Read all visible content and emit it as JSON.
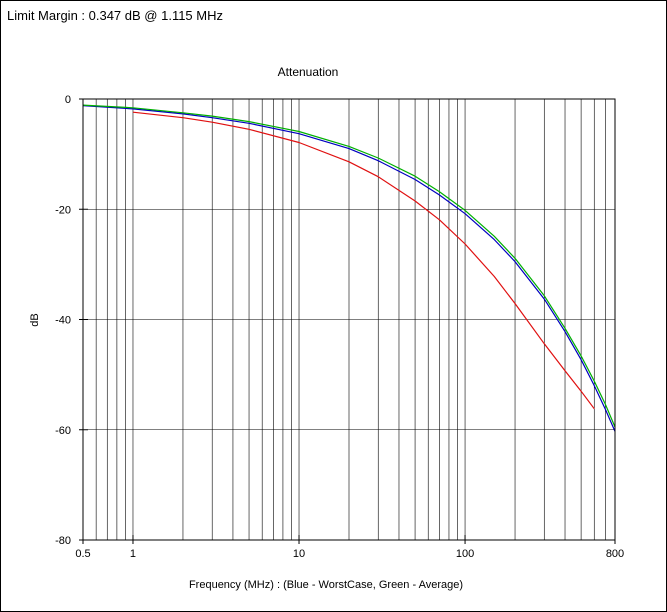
{
  "header": {
    "limit_margin": "Limit Margin : 0.347 dB @ 1.115 MHz"
  },
  "chart_data": {
    "type": "line",
    "title": "Attenuation",
    "xlabel": "Frequency (MHz) : (Blue - WorstCase, Green - Average)",
    "ylabel": "dB",
    "xscale": "log",
    "xlim": [
      0.5,
      800
    ],
    "ylim": [
      -80,
      0
    ],
    "xticks": [
      {
        "value": 0.5,
        "label": "0.5"
      },
      {
        "value": 1,
        "label": "1"
      },
      {
        "value": 10,
        "label": "10"
      },
      {
        "value": 100,
        "label": "100"
      },
      {
        "value": 800,
        "label": "800"
      }
    ],
    "yticks": [
      {
        "value": 0,
        "label": "0"
      },
      {
        "value": -20,
        "label": "-20"
      },
      {
        "value": -40,
        "label": "-40"
      },
      {
        "value": -60,
        "label": "-60"
      },
      {
        "value": -80,
        "label": "-80"
      }
    ],
    "grid": true,
    "series": [
      {
        "color": "#0000c0",
        "x": [
          0.5,
          1,
          2,
          3,
          5,
          10,
          20,
          30,
          50,
          70,
          100,
          150,
          200,
          300,
          400,
          500,
          600,
          700,
          800
        ],
        "y": [
          -1.2,
          -1.8,
          -2.7,
          -3.4,
          -4.4,
          -6.3,
          -9.0,
          -11.2,
          -14.6,
          -17.4,
          -20.8,
          -25.5,
          -29.5,
          -36.3,
          -42.2,
          -47.3,
          -52.0,
          -56.3,
          -60.3
        ]
      },
      {
        "color": "#00b000",
        "x": [
          0.5,
          1,
          2,
          3,
          5,
          10,
          20,
          30,
          50,
          70,
          100,
          150,
          200,
          300,
          400,
          500,
          600,
          700,
          800
        ],
        "y": [
          -1.1,
          -1.6,
          -2.5,
          -3.1,
          -4.1,
          -5.9,
          -8.6,
          -10.7,
          -14.0,
          -16.8,
          -20.2,
          -24.9,
          -28.9,
          -35.7,
          -41.6,
          -46.6,
          -51.2,
          -55.4,
          -59.5
        ]
      },
      {
        "color": "#e01010",
        "x": [
          1,
          2,
          3,
          5,
          10,
          20,
          30,
          50,
          70,
          100,
          150,
          200,
          300,
          400,
          500,
          600
        ],
        "y": [
          -2.4,
          -3.4,
          -4.2,
          -5.5,
          -7.9,
          -11.4,
          -14.1,
          -18.5,
          -21.9,
          -26.3,
          -32.2,
          -37.1,
          -44.4,
          -49.3,
          -53.0,
          -56.2
        ]
      }
    ]
  }
}
